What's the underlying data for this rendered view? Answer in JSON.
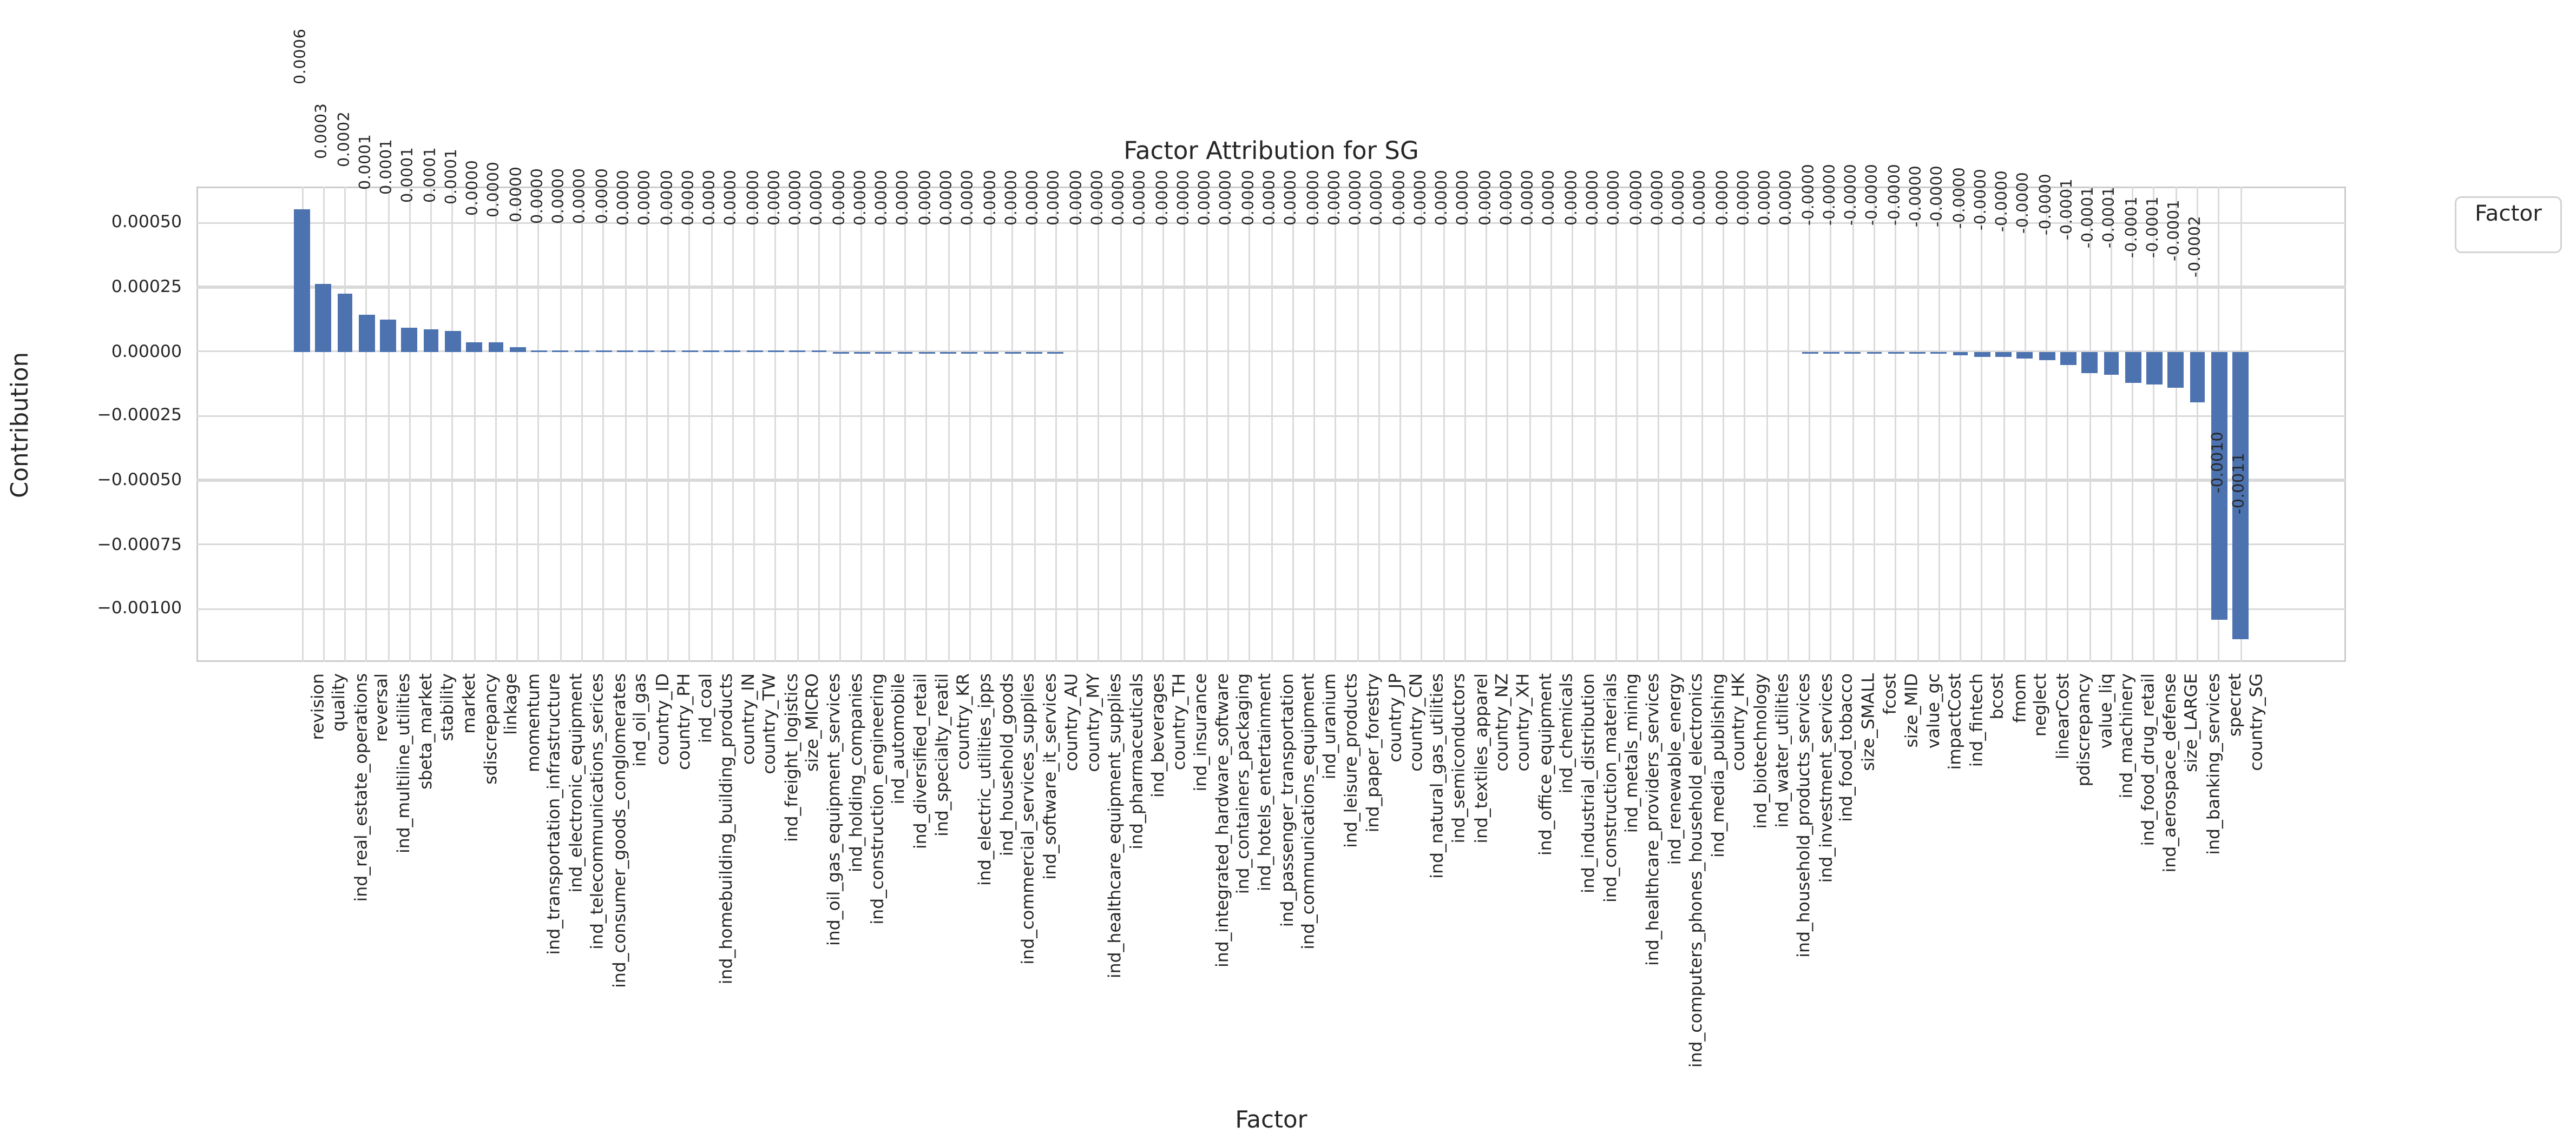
{
  "figure": {
    "title": "Factor Attribution for SG",
    "xlabel": "Factor",
    "ylabel": "Contribution",
    "legend_title": "Factor",
    "colors": {
      "bar": "#4c72b0",
      "grid": "#d9d9d9",
      "spine": "#cccccc",
      "text": "#262626"
    }
  },
  "chart_data": {
    "type": "bar",
    "title": "Factor Attribution for SG",
    "xlabel": "Factor",
    "ylabel": "Contribution",
    "legend": {
      "title": "Factor",
      "position": "outside-upper-right"
    },
    "grid": true,
    "ylim": [
      -0.00121,
      0.00062
    ],
    "yticks": [
      0.0005,
      0.00025,
      0.0,
      -0.00025,
      -0.0005,
      -0.00075,
      -0.001
    ],
    "ytick_labels": [
      "0.00050",
      "0.00025",
      "0.00000",
      "−0.00025",
      "−0.00050",
      "−0.00075",
      "−0.00100"
    ],
    "categories": [
      "revision",
      "quality",
      "ind_real_estate_operations",
      "reversal",
      "ind_multiline_utilities",
      "sbeta_market",
      "stability",
      "market",
      "sdiscrepancy",
      "linkage",
      "momentum",
      "ind_transportation_infrastructure",
      "ind_electronic_equipment",
      "ind_telecommunications_serices",
      "ind_consumer_goods_conglomerates",
      "ind_oil_gas",
      "country_ID",
      "country_PH",
      "ind_coal",
      "ind_homebuilding_building_products",
      "country_IN",
      "country_TW",
      "ind_freight_logistics",
      "size_MICRO",
      "ind_oil_gas_equipment_services",
      "ind_holding_companies",
      "ind_construction_engineering",
      "ind_automobile",
      "ind_diversified_retail",
      "ind_specialty_reatil",
      "country_KR",
      "ind_electric_utilities_ipps",
      "ind_household_goods",
      "ind_commercial_services_supplies",
      "ind_software_it_services",
      "country_AU",
      "country_MY",
      "ind_healthcare_equipment_supplies",
      "ind_pharmaceuticals",
      "ind_beverages",
      "country_TH",
      "ind_insurance",
      "ind_integrated_hardware_software",
      "ind_containers_packaging",
      "ind_hotels_entertainment",
      "ind_passenger_transportation",
      "ind_communications_equipment",
      "ind_uranium",
      "ind_leisure_products",
      "ind_paper_forestry",
      "country_JP",
      "country_CN",
      "ind_natural_gas_utilities",
      "ind_semiconductors",
      "ind_textiles_apparel",
      "country_NZ",
      "country_XH",
      "ind_office_equipment",
      "ind_chemicals",
      "ind_industrial_distribution",
      "ind_construction_materials",
      "ind_metals_mining",
      "ind_healthcare_providers_services",
      "ind_renewable_energy",
      "ind_computers_phones_household_electronics",
      "ind_media_publishing",
      "country_HK",
      "ind_biotechnology",
      "ind_water_utilities",
      "ind_household_products_services",
      "ind_investment_services",
      "ind_food_tobacco",
      "size_SMALL",
      "fcost",
      "size_MID",
      "value_gc",
      "impactCost",
      "ind_fintech",
      "bcost",
      "fmom",
      "neglect",
      "linearCost",
      "pdiscrepancy",
      "value_liq",
      "ind_machinery",
      "ind_food_drug_retail",
      "ind_aerospace_defense",
      "size_LARGE",
      "ind_banking_services",
      "specret",
      "country_SG"
    ],
    "values": [
      0.00055,
      0.00026,
      0.000225,
      0.00014,
      0.000122,
      9e-05,
      8.6e-05,
      8.1e-05,
      3.7e-05,
      3.4e-05,
      1.4e-05,
      5.6e-06,
      4e-06,
      3.4e-06,
      3e-06,
      2.7e-06,
      2.4e-06,
      2.2e-06,
      2e-06,
      1.8e-06,
      1.6e-06,
      1.5e-06,
      1.3e-06,
      1.2e-06,
      1.1e-06,
      1e-06,
      9e-07,
      8e-07,
      8e-07,
      7e-07,
      7e-07,
      6e-07,
      6e-07,
      5e-07,
      5e-07,
      5e-07,
      4e-07,
      4e-07,
      4e-07,
      3e-07,
      3e-07,
      3e-07,
      3e-07,
      2e-07,
      2e-07,
      2e-07,
      2e-07,
      2e-07,
      1e-07,
      1e-07,
      1e-07,
      1e-07,
      1e-07,
      1e-07,
      1e-07,
      0.0,
      0.0,
      0.0,
      0.0,
      0.0,
      0.0,
      0.0,
      0.0,
      0.0,
      0.0,
      0.0,
      0.0,
      0.0,
      0.0,
      0.0,
      -5e-07,
      -8e-07,
      -1.2e-06,
      -2e-06,
      -3e-06,
      -6e-06,
      -9e-06,
      -1.3e-05,
      -2e-05,
      -2.4e-05,
      -3e-05,
      -3.5e-05,
      -5.5e-05,
      -8.7e-05,
      -9e-05,
      -0.000125,
      -0.000128,
      -0.00014,
      -0.0002,
      -0.00104,
      -0.00112
    ],
    "bar_value_labels": [
      "0.0006",
      "0.0003",
      "0.0002",
      "0.0001",
      "0.0001",
      "0.0001",
      "0.0001",
      "0.0001",
      "0.0000",
      "0.0000",
      "0.0000",
      "0.0000",
      "0.0000",
      "0.0000",
      "0.0000",
      "0.0000",
      "0.0000",
      "0.0000",
      "0.0000",
      "0.0000",
      "0.0000",
      "0.0000",
      "0.0000",
      "0.0000",
      "0.0000",
      "0.0000",
      "0.0000",
      "0.0000",
      "0.0000",
      "0.0000",
      "0.0000",
      "0.0000",
      "0.0000",
      "0.0000",
      "0.0000",
      "0.0000",
      "0.0000",
      "0.0000",
      "0.0000",
      "0.0000",
      "0.0000",
      "0.0000",
      "0.0000",
      "0.0000",
      "0.0000",
      "0.0000",
      "0.0000",
      "0.0000",
      "0.0000",
      "0.0000",
      "0.0000",
      "0.0000",
      "0.0000",
      "0.0000",
      "0.0000",
      "0.0000",
      "0.0000",
      "0.0000",
      "0.0000",
      "0.0000",
      "0.0000",
      "0.0000",
      "0.0000",
      "0.0000",
      "0.0000",
      "0.0000",
      "0.0000",
      "0.0000",
      "0.0000",
      "0.0000",
      "-0.0000",
      "-0.0000",
      "-0.0000",
      "-0.0000",
      "-0.0000",
      "-0.0000",
      "-0.0000",
      "-0.0000",
      "-0.0000",
      "-0.0000",
      "-0.0000",
      "-0.0000",
      "-0.0001",
      "-0.0001",
      "-0.0001",
      "-0.0001",
      "-0.0001",
      "-0.0001",
      "-0.0002",
      "-0.0010",
      "-0.0011"
    ]
  }
}
